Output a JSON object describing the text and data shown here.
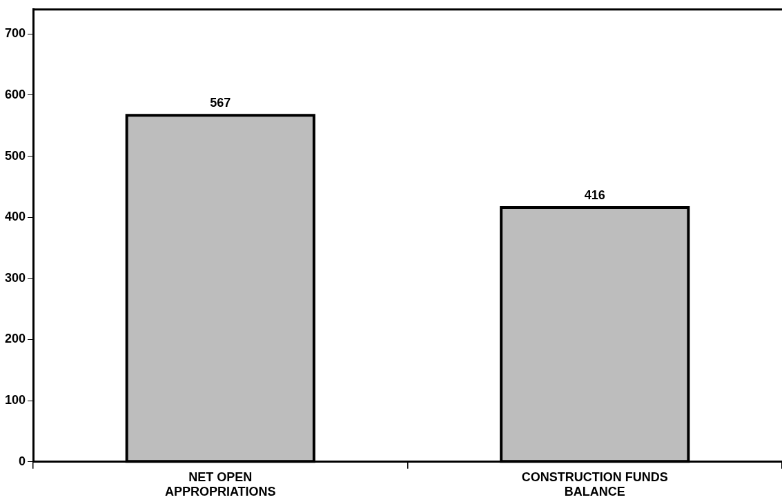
{
  "chart_data": {
    "type": "bar",
    "categories": [
      "NET OPEN APPROPRIATIONS",
      "CONSTRUCTION FUNDS BALANCE"
    ],
    "values": [
      567,
      416
    ],
    "color": "#bdbdbd",
    "ylim": [
      0,
      740
    ],
    "yticks": [
      0,
      100,
      200,
      300,
      400,
      500,
      600,
      700
    ],
    "grid": false,
    "data_labels": true
  }
}
